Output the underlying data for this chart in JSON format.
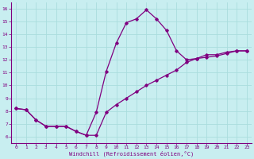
{
  "xlabel": "Windchill (Refroidissement éolien,°C)",
  "bg_color": "#c8eef0",
  "grid_color": "#aadddd",
  "line_color": "#800080",
  "x_upper": [
    0,
    1,
    2,
    3,
    4,
    5,
    6,
    7,
    8,
    9,
    10,
    11,
    12,
    13,
    14,
    15,
    16,
    17,
    18,
    19,
    20,
    21,
    22,
    23
  ],
  "y_upper": [
    8.2,
    8.1,
    7.3,
    6.8,
    6.8,
    6.8,
    6.4,
    6.1,
    7.9,
    11.1,
    13.3,
    14.9,
    15.2,
    15.9,
    15.2,
    14.3,
    12.7,
    12.0,
    12.1,
    12.4,
    12.4,
    12.6,
    12.7,
    12.7
  ],
  "x_lower": [
    0,
    1,
    2,
    3,
    4,
    5,
    6,
    7,
    8,
    9,
    10,
    11,
    12,
    13,
    14,
    15,
    16,
    17,
    18,
    19,
    20,
    21,
    22,
    23
  ],
  "y_lower": [
    8.2,
    8.1,
    7.3,
    6.8,
    6.8,
    6.8,
    6.4,
    6.1,
    6.1,
    7.9,
    8.5,
    9.0,
    9.5,
    10.0,
    10.4,
    10.8,
    11.2,
    11.8,
    12.1,
    12.2,
    12.3,
    12.5,
    12.7,
    12.7
  ],
  "ylim": [
    5.5,
    16.5
  ],
  "xlim": [
    -0.5,
    23.5
  ],
  "yticks": [
    6,
    7,
    8,
    9,
    10,
    11,
    12,
    13,
    14,
    15,
    16
  ],
  "xticks": [
    0,
    1,
    2,
    3,
    4,
    5,
    6,
    7,
    8,
    9,
    10,
    11,
    12,
    13,
    14,
    15,
    16,
    17,
    18,
    19,
    20,
    21,
    22,
    23
  ],
  "tick_fontsize": 4.5,
  "xlabel_fontsize": 5.0,
  "marker_size": 1.8,
  "line_width": 0.9
}
